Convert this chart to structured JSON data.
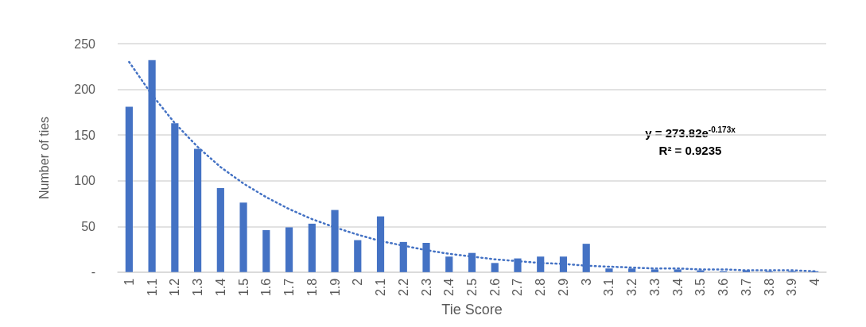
{
  "chart_data": {
    "type": "bar",
    "xlabel": "Tie Score",
    "ylabel": "Number of ties",
    "categories": [
      "1",
      "1.1",
      "1.2",
      "1.3",
      "1.4",
      "1.5",
      "1.6",
      "1.7",
      "1.8",
      "1.9",
      "2",
      "2.1",
      "2.2",
      "2.3",
      "2.4",
      "2.5",
      "2.6",
      "2.7",
      "2.8",
      "2.9",
      "3",
      "3.1",
      "3.2",
      "3.3",
      "3.4",
      "3.5",
      "3.6",
      "3.7",
      "3.8",
      "3.9",
      "4"
    ],
    "series": [
      {
        "color": "#4472c4",
        "values": [
          181,
          232,
          163,
          135,
          92,
          76,
          46,
          49,
          53,
          68,
          35,
          61,
          33,
          32,
          17,
          21,
          10,
          15,
          17,
          17,
          31,
          4,
          4,
          3,
          3,
          2,
          1,
          2,
          1,
          1,
          1
        ]
      },
      {
        "type": "line",
        "color": "#4472c4",
        "line_style": "dotted",
        "x": [
          "1",
          "1.1",
          "1.2",
          "1.3",
          "1.4",
          "1.5",
          "1.6",
          "1.7",
          "1.8",
          "1.9",
          "2",
          "2.1",
          "2.2",
          "2.3",
          "2.4",
          "2.5",
          "2.6",
          "2.7",
          "2.8",
          "2.9",
          "3",
          "3.1",
          "3.2",
          "3.3",
          "3.4",
          "3.5",
          "3.6",
          "3.7",
          "3.8",
          "3.9",
          "4"
        ],
        "values": [
          230,
          194,
          163,
          137,
          115,
          97,
          82,
          69,
          58,
          49,
          41,
          34,
          29,
          24,
          20,
          17,
          14,
          12,
          10,
          9,
          7,
          6,
          5,
          4,
          4,
          3,
          3,
          2,
          2,
          2,
          1
        ]
      }
    ],
    "ylim": [
      0,
      250
    ],
    "yticks": [
      {
        "value": 0,
        "label": "-"
      },
      50,
      100,
      150,
      200,
      250
    ],
    "grid": "y",
    "marker": "none",
    "annotations": [
      "y = 273.82e$^{-0.173x}$",
      "R² = 0.9235"
    ]
  }
}
